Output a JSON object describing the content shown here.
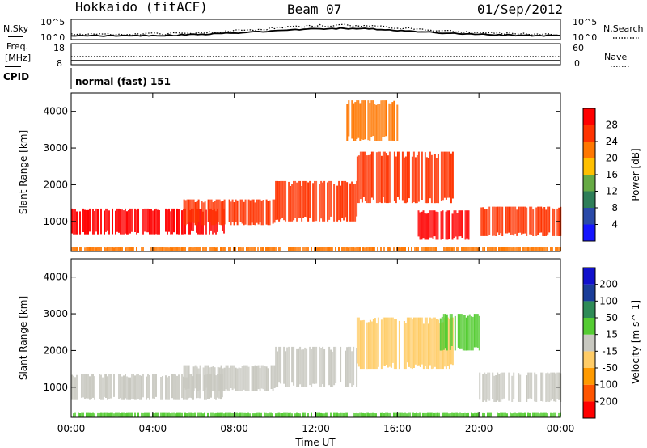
{
  "header": {
    "title": "Hokkaido (fitACF)",
    "beam": "Beam 07",
    "date": "01/Sep/2012"
  },
  "sky_panel": {
    "left_label": "N.Sky",
    "right_label": "N.Search",
    "left_ticks": [
      "10^5",
      "10^0"
    ],
    "right_ticks": [
      "10^5",
      "10^0"
    ]
  },
  "freq_panel": {
    "left_label_1": "Freq.",
    "left_label_2": "[MHz]",
    "left_ticks": [
      "18",
      "8"
    ],
    "right_label": "Nave",
    "right_ticks": [
      "60",
      "0"
    ]
  },
  "cpid_panel": {
    "label": "CPID",
    "mode": "normal (fast) 151"
  },
  "legend_colors": {
    "power": [
      "#1515ff",
      "#2a4aa8",
      "#2e7e58",
      "#66aa44",
      "#ffc000",
      "#ff7700",
      "#ff3300",
      "#ff0000"
    ],
    "velocity": [
      "#ff0000",
      "#ff5500",
      "#ff9a00",
      "#ffcc66",
      "#c8c8c0",
      "#55cc33",
      "#2e8b57",
      "#1a3d99",
      "#1111cc"
    ]
  },
  "chart_data": [
    {
      "type": "heatmap",
      "title": "",
      "xlabel": "",
      "ylabel": "Slant Range [km]",
      "x_ticks": [
        "00:00",
        "04:00",
        "08:00",
        "12:00",
        "16:00",
        "20:00",
        "00:00"
      ],
      "y_ticks": [
        "1000",
        "2000",
        "3000",
        "4000"
      ],
      "ylim": [
        180,
        4500
      ],
      "colorbar": {
        "label": "Power [dB]",
        "ticks": [
          "4",
          "8",
          "12",
          "16",
          "20",
          "24",
          "28"
        ],
        "range": [
          0,
          32
        ]
      },
      "regions": [
        {
          "name": "near-range band",
          "t_start_h": 0.0,
          "t_end_h": 24.0,
          "range_low_km": 180,
          "range_high_km": 300,
          "value": 22
        },
        {
          "name": "main echo band 1",
          "t_start_h": 0.0,
          "t_end_h": 7.5,
          "range_low_km": 650,
          "range_high_km": 1350,
          "value": 28
        },
        {
          "name": "main echo band 2",
          "t_start_h": 5.5,
          "t_end_h": 10.0,
          "range_low_km": 900,
          "range_high_km": 1600,
          "value": 27
        },
        {
          "name": "rising arc 1",
          "t_start_h": 10.0,
          "t_end_h": 14.0,
          "range_low_km": 1000,
          "range_high_km": 2100,
          "value": 26
        },
        {
          "name": "rising arc 2",
          "t_start_h": 14.0,
          "t_end_h": 18.7,
          "range_low_km": 1500,
          "range_high_km": 2900,
          "value": 25
        },
        {
          "name": "post-midday band",
          "t_start_h": 17.0,
          "t_end_h": 19.5,
          "range_low_km": 500,
          "range_high_km": 1300,
          "value": 28
        },
        {
          "name": "evening band",
          "t_start_h": 20.0,
          "t_end_h": 24.0,
          "range_low_km": 600,
          "range_high_km": 1400,
          "value": 27
        },
        {
          "name": "far-range patches",
          "t_start_h": 13.5,
          "t_end_h": 16.0,
          "range_low_km": 3200,
          "range_high_km": 4300,
          "value": 20
        }
      ]
    },
    {
      "type": "heatmap",
      "title": "",
      "xlabel": "Time UT",
      "ylabel": "Slant Range [km]",
      "x_ticks": [
        "00:00",
        "04:00",
        "08:00",
        "12:00",
        "16:00",
        "20:00",
        "00:00"
      ],
      "y_ticks": [
        "1000",
        "2000",
        "3000",
        "4000"
      ],
      "ylim": [
        180,
        4500
      ],
      "colorbar": {
        "label": "Velocity [m s^-1]",
        "ticks": [
          "-200",
          "-100",
          "-50",
          "-15",
          "15",
          "50",
          "100",
          "200"
        ],
        "range": [
          -250,
          250
        ]
      },
      "regions": [
        {
          "name": "near-range band",
          "t_start_h": 0.0,
          "t_end_h": 24.0,
          "range_low_km": 180,
          "range_high_km": 300,
          "value": 30
        },
        {
          "name": "main echo band 1",
          "t_start_h": 0.0,
          "t_end_h": 7.5,
          "range_low_km": 650,
          "range_high_km": 1350,
          "value": 0
        },
        {
          "name": "main echo band 2",
          "t_start_h": 5.5,
          "t_end_h": 10.0,
          "range_low_km": 900,
          "range_high_km": 1600,
          "value": 0
        },
        {
          "name": "rising arc 1",
          "t_start_h": 10.0,
          "t_end_h": 14.0,
          "range_low_km": 1000,
          "range_high_km": 2100,
          "value": 0
        },
        {
          "name": "rising arc 2",
          "t_start_h": 14.0,
          "t_end_h": 18.7,
          "range_low_km": 1500,
          "range_high_km": 2900,
          "value": -40
        },
        {
          "name": "green arc",
          "t_start_h": 18.0,
          "t_end_h": 20.0,
          "range_low_km": 2000,
          "range_high_km": 3000,
          "value": 40
        },
        {
          "name": "evening band",
          "t_start_h": 20.0,
          "t_end_h": 24.0,
          "range_low_km": 600,
          "range_high_km": 1400,
          "value": 0
        }
      ]
    }
  ]
}
